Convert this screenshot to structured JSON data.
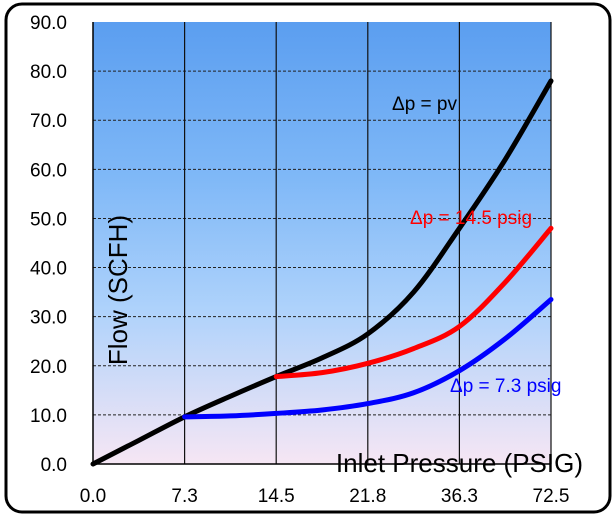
{
  "chart_data": {
    "type": "line",
    "title": "",
    "xlabel": "Inlet Pressure (PSIG)",
    "ylabel": "Flow (SCFH)",
    "categories": [
      "0.0",
      "7.3",
      "14.5",
      "21.8",
      "36.3",
      "72.5"
    ],
    "x_positions": [
      0,
      1,
      2,
      3,
      4,
      5
    ],
    "y_ticks": [
      "0.0",
      "10.0",
      "20.0",
      "30.0",
      "40.0",
      "50.0",
      "60.0",
      "70.0",
      "80.0",
      "90.0"
    ],
    "ylim": [
      0,
      90
    ],
    "grid": true,
    "series": [
      {
        "name": "Δp = pv",
        "color": "#000000",
        "points": [
          [
            0,
            0
          ],
          [
            0.5,
            4.8
          ],
          [
            1,
            9.6
          ],
          [
            1.5,
            13.8
          ],
          [
            2,
            17.8
          ],
          [
            2.5,
            21.6
          ],
          [
            3,
            26.5
          ],
          [
            3.5,
            35
          ],
          [
            4,
            48
          ],
          [
            4.5,
            62
          ],
          [
            5,
            78
          ]
        ]
      },
      {
        "name": "Δp = 14.5 psig",
        "color": "#ff0000",
        "points": [
          [
            2,
            17.8
          ],
          [
            2.5,
            18.6
          ],
          [
            3,
            20.5
          ],
          [
            3.5,
            23.5
          ],
          [
            4,
            28
          ],
          [
            4.5,
            37
          ],
          [
            5,
            48
          ]
        ]
      },
      {
        "name": "Δp = 7.3 psig",
        "color": "#0000ff",
        "points": [
          [
            1,
            9.6
          ],
          [
            1.5,
            9.8
          ],
          [
            2,
            10.3
          ],
          [
            2.5,
            11
          ],
          [
            3,
            12.3
          ],
          [
            3.5,
            14.5
          ],
          [
            4,
            19
          ],
          [
            4.5,
            25.5
          ],
          [
            5,
            33.5
          ]
        ]
      }
    ],
    "background_gradient": [
      "#5b9ef0",
      "#f6e6f4"
    ]
  }
}
